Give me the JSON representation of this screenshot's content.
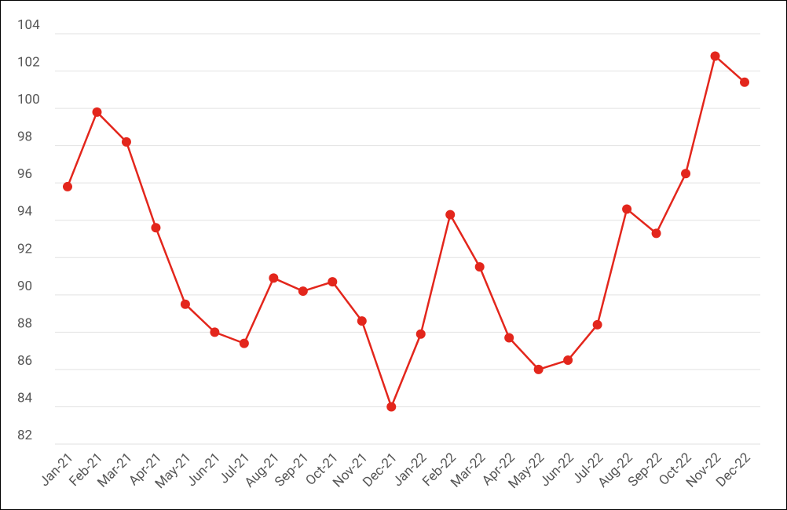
{
  "chart_data": {
    "type": "line",
    "categories": [
      "Jan-21",
      "Feb-21",
      "Mar-21",
      "Apr-21",
      "May-21",
      "Jun-21",
      "Jul-21",
      "Aug-21",
      "Sep-21",
      "Oct-21",
      "Nov-21",
      "Dec-21",
      "Jan-22",
      "Feb-22",
      "Mar-22",
      "Apr-22",
      "May-22",
      "Jun-22",
      "Jul-22",
      "Aug-22",
      "Sep-22",
      "Oct-22",
      "Nov-22",
      "Dec-22"
    ],
    "values": [
      95.8,
      99.8,
      98.2,
      93.6,
      89.5,
      88.0,
      87.4,
      90.9,
      90.2,
      90.7,
      88.6,
      84.0,
      87.9,
      94.3,
      91.5,
      87.7,
      86.0,
      86.5,
      88.4,
      94.6,
      93.3,
      96.5,
      102.8,
      101.4
    ],
    "color": "#e3261c",
    "ylim": [
      82,
      104
    ],
    "yticks": [
      82,
      84,
      86,
      88,
      90,
      92,
      94,
      96,
      98,
      100,
      102,
      104
    ],
    "grid": true
  }
}
